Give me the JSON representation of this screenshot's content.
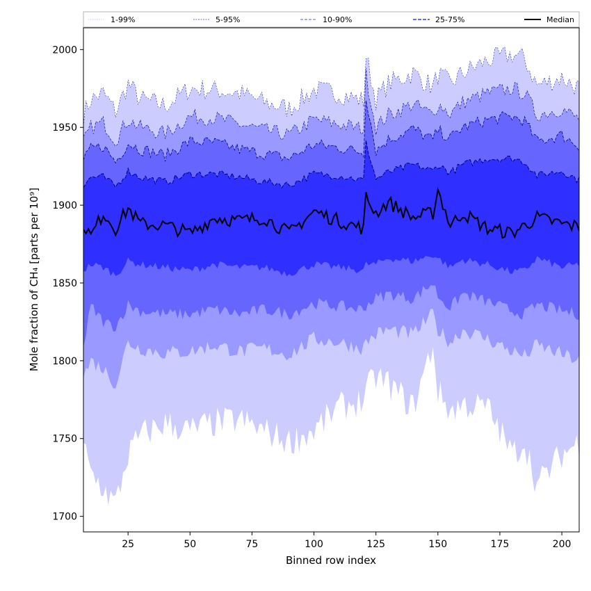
{
  "chart_data": {
    "type": "area",
    "title": "",
    "xlabel": "Binned row index",
    "ylabel": "Mole fraction of CH₄ [parts per 10⁹]",
    "xlim": [
      7,
      207
    ],
    "ylim": [
      1690,
      2014
    ],
    "xticks": [
      25,
      50,
      75,
      100,
      125,
      150,
      175,
      200
    ],
    "yticks": [
      1700,
      1750,
      1800,
      1850,
      1900,
      1950,
      2000
    ],
    "grid": false,
    "legend_position": "top",
    "legend": [
      "1-99%",
      "5-95%",
      "10-90%",
      "25-75%",
      "Median"
    ],
    "colors": {
      "band_1_99": "#ccccff",
      "band_5_95": "#9999ff",
      "band_10_90": "#6666ff",
      "band_25_75": "#2f2fff",
      "median": "#000000",
      "edge": "#000080"
    },
    "x_knots": [
      7,
      10,
      15,
      20,
      25,
      30,
      40,
      50,
      60,
      70,
      80,
      90,
      100,
      110,
      120,
      121,
      125,
      130,
      140,
      148,
      150,
      155,
      160,
      170,
      180,
      185,
      190,
      200,
      207
    ],
    "p99_knots": [
      1958,
      1968,
      1972,
      1960,
      1978,
      1968,
      1964,
      1975,
      1974,
      1972,
      1966,
      1962,
      1974,
      1972,
      1967,
      1996,
      1968,
      1978,
      1985,
      1976,
      1984,
      1978,
      1985,
      1993,
      1997,
      1994,
      1977,
      1982,
      1975
    ],
    "p95_knots": [
      1940,
      1950,
      1953,
      1942,
      1955,
      1950,
      1946,
      1957,
      1956,
      1952,
      1948,
      1945,
      1955,
      1952,
      1949,
      1984,
      1950,
      1958,
      1965,
      1958,
      1965,
      1959,
      1966,
      1972,
      1975,
      1972,
      1958,
      1962,
      1955
    ],
    "p90_knots": [
      1928,
      1936,
      1938,
      1928,
      1940,
      1936,
      1932,
      1941,
      1940,
      1936,
      1933,
      1930,
      1939,
      1937,
      1934,
      1970,
      1935,
      1942,
      1949,
      1942,
      1948,
      1943,
      1950,
      1955,
      1957,
      1954,
      1941,
      1945,
      1938
    ],
    "p75_knots": [
      1912,
      1918,
      1918,
      1912,
      1922,
      1918,
      1915,
      1920,
      1920,
      1918,
      1915,
      1913,
      1920,
      1919,
      1916,
      1940,
      1917,
      1921,
      1926,
      1922,
      1926,
      1921,
      1926,
      1930,
      1930,
      1928,
      1919,
      1922,
      1916
    ],
    "median_knots": [
      1888,
      1880,
      1895,
      1885,
      1898,
      1888,
      1887,
      1882,
      1892,
      1890,
      1892,
      1882,
      1896,
      1890,
      1885,
      1905,
      1895,
      1902,
      1892,
      1895,
      1910,
      1887,
      1895,
      1885,
      1882,
      1887,
      1892,
      1888,
      1886
    ],
    "p25_knots": [
      1858,
      1862,
      1860,
      1855,
      1864,
      1862,
      1860,
      1858,
      1862,
      1860,
      1860,
      1856,
      1862,
      1860,
      1858,
      1862,
      1862,
      1866,
      1864,
      1868,
      1866,
      1860,
      1865,
      1862,
      1857,
      1858,
      1866,
      1860,
      1862
    ],
    "p10_knots": [
      1808,
      1835,
      1825,
      1822,
      1836,
      1832,
      1830,
      1830,
      1833,
      1830,
      1833,
      1830,
      1837,
      1835,
      1833,
      1836,
      1840,
      1843,
      1840,
      1850,
      1842,
      1834,
      1843,
      1838,
      1832,
      1830,
      1836,
      1832,
      1830
    ],
    "p5_knots": [
      1790,
      1800,
      1795,
      1785,
      1812,
      1808,
      1805,
      1806,
      1810,
      1806,
      1808,
      1804,
      1814,
      1812,
      1808,
      1812,
      1817,
      1820,
      1817,
      1830,
      1820,
      1812,
      1820,
      1814,
      1806,
      1803,
      1810,
      1804,
      1800
    ],
    "p1_knots": [
      1745,
      1728,
      1718,
      1708,
      1740,
      1752,
      1760,
      1755,
      1760,
      1762,
      1755,
      1748,
      1755,
      1770,
      1775,
      1780,
      1790,
      1785,
      1770,
      1810,
      1780,
      1768,
      1772,
      1770,
      1740,
      1748,
      1720,
      1740,
      1748
    ]
  }
}
